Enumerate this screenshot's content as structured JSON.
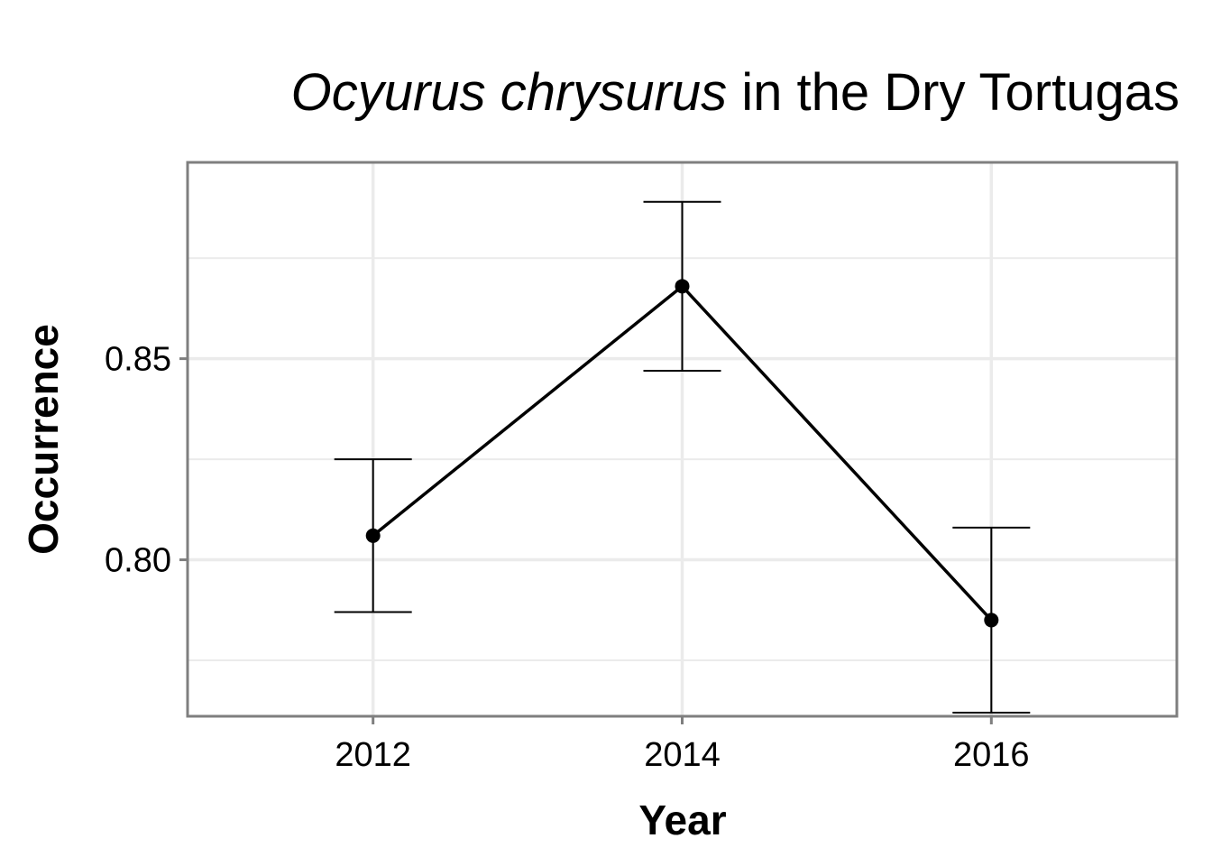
{
  "chart_data": {
    "type": "line",
    "title_italic": "Ocyurus chrysurus",
    "title_rest": "in the Dry Tortugas",
    "xlabel": "Year",
    "ylabel": "Occurrence",
    "x": [
      2012,
      2014,
      2016
    ],
    "x_tick_labels": [
      "2012",
      "2014",
      "2016"
    ],
    "xlim": [
      2010.8,
      2017.2
    ],
    "y_ticks": [
      0.8,
      0.85
    ],
    "y_tick_labels": [
      "0.80",
      "0.85"
    ],
    "y_minor_ticks": [
      0.775,
      0.825,
      0.875
    ],
    "ylim": [
      0.7611,
      0.8988
    ],
    "series": [
      {
        "name": "Occurrence",
        "values": [
          0.806,
          0.868,
          0.785
        ],
        "lower": [
          0.787,
          0.847,
          0.762
        ],
        "upper": [
          0.825,
          0.889,
          0.808
        ]
      }
    ],
    "grid": true,
    "colors": {
      "line": "#000000",
      "grid": "#ebebeb",
      "border": "#7f7f7f"
    }
  }
}
